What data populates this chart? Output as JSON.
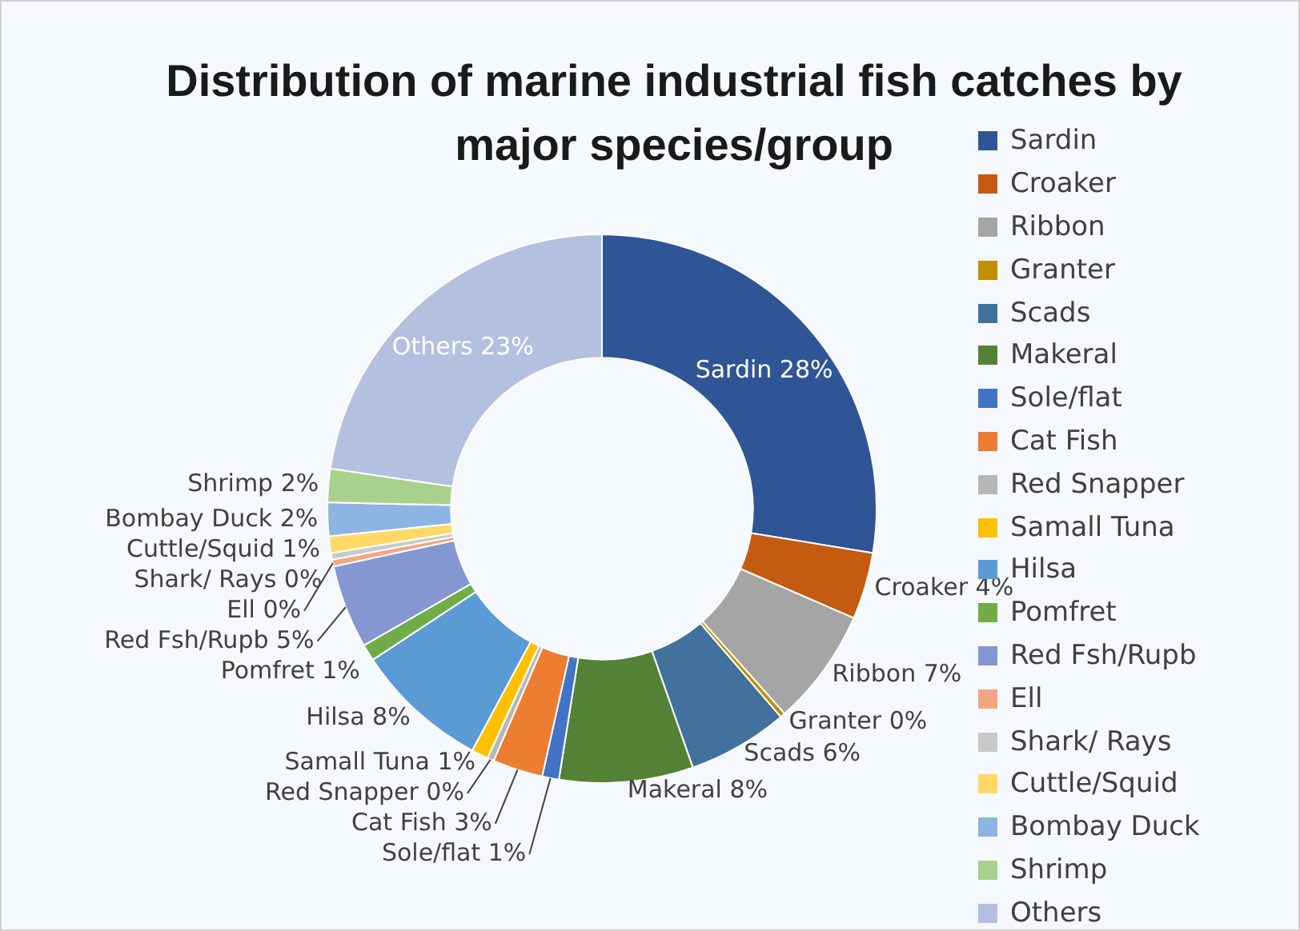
{
  "chart_data": {
    "type": "donut",
    "title": "Distribution of marine industrial fish catches by major species/group",
    "categories": [
      "Sardin",
      "Croaker",
      "Ribbon",
      "Granter",
      "Scads",
      "Makeral",
      "Sole/flat",
      "Cat Fish",
      "Red Snapper",
      "Samall Tuna",
      "Hilsa",
      "Pomfret",
      "Red Fsh/Rupb",
      "Ell",
      "Shark/ Rays",
      "Cuttle/Squid",
      "Bombay Duck",
      "Shrimp",
      "Others"
    ],
    "values": [
      28,
      4,
      7,
      0.3,
      6,
      8,
      1,
      3,
      0.4,
      1,
      8,
      1,
      5,
      0.4,
      0.4,
      1,
      2,
      2,
      23
    ],
    "value_labels": [
      "28%",
      "4%",
      "7%",
      "0%",
      "6%",
      "8%",
      "1%",
      "3%",
      "0%",
      "1%",
      "8%",
      "1%",
      "5%",
      "0%",
      "0%",
      "1%",
      "2%",
      "2%",
      "23%"
    ],
    "colors": [
      "#2f5597",
      "#c55a11",
      "#a5a5a5",
      "#bf9000",
      "#41719c",
      "#548235",
      "#4472c4",
      "#ed7d31",
      "#b7b7b7",
      "#ffc000",
      "#5b9bd5",
      "#70ad47",
      "#8497d0",
      "#f4a582",
      "#c9c9c9",
      "#ffd966",
      "#8eb4e3",
      "#a9d18e",
      "#b4c0e0"
    ],
    "legend": "right"
  }
}
